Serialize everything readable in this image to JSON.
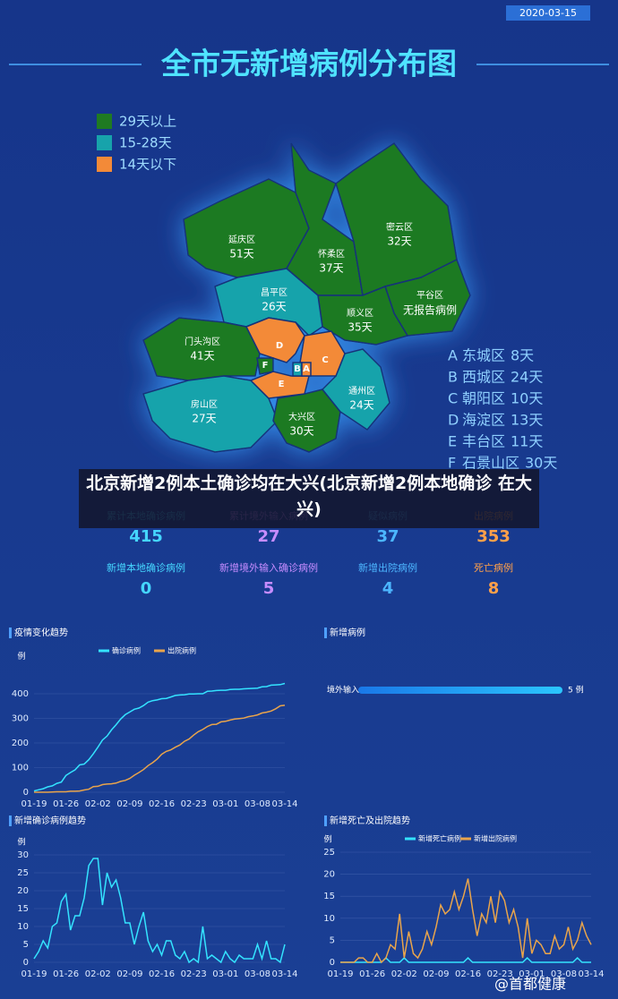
{
  "header": {
    "date": "2020-03-15",
    "title": "全市无新增病例分布图"
  },
  "map": {
    "legend": [
      {
        "label": "29天以上",
        "color": "#1f7a22"
      },
      {
        "label": "15-28天",
        "color": "#17a3ab"
      },
      {
        "label": "14天以下",
        "color": "#f38a38"
      }
    ],
    "regions": [
      {
        "name": "延庆区",
        "days": "51天"
      },
      {
        "name": "怀柔区",
        "days": "37天"
      },
      {
        "name": "密云区",
        "days": "32天"
      },
      {
        "name": "平谷区",
        "days": "无报告病例"
      },
      {
        "name": "顺义区",
        "days": "35天"
      },
      {
        "name": "昌平区",
        "days": "26天"
      },
      {
        "name": "门头沟区",
        "days": "41天"
      },
      {
        "name": "房山区",
        "days": "27天"
      },
      {
        "name": "大兴区",
        "days": "30天"
      },
      {
        "name": "通州区",
        "days": "24天"
      }
    ],
    "districts": [
      {
        "letter": "A",
        "name": "东城区",
        "days": "8天"
      },
      {
        "letter": "B",
        "name": "西城区",
        "days": "24天"
      },
      {
        "letter": "C",
        "name": "朝阳区",
        "days": "10天"
      },
      {
        "letter": "D",
        "name": "海淀区",
        "days": "13天"
      },
      {
        "letter": "E",
        "name": "丰台区",
        "days": "11天"
      },
      {
        "letter": "F",
        "name": "石景山区",
        "days": "30天"
      }
    ]
  },
  "caption": "北京新增2例本土确诊均在大兴(北京新增2例本地确诊 在大兴)",
  "stats": {
    "rows": [
      [
        {
          "label": "累计本地确诊病例",
          "value": 415,
          "color": "#45d6ff"
        },
        {
          "label": "累计境外输入病例",
          "value": 27,
          "color": "#c58cff"
        },
        {
          "label": "疑似病例",
          "value": 37,
          "color": "#4cb6ff"
        },
        {
          "label": "出院病例",
          "value": 353,
          "color": "#ffa04a"
        }
      ],
      [
        {
          "label": "新增本地确诊病例",
          "value": 0,
          "color": "#45d6ff"
        },
        {
          "label": "新增境外输入确诊病例",
          "value": 5,
          "color": "#c58cff"
        },
        {
          "label": "新增出院病例",
          "value": 4,
          "color": "#4cb6ff"
        },
        {
          "label": "死亡病例",
          "value": 8,
          "color": "#ffa04a"
        }
      ]
    ]
  },
  "chart_data": [
    {
      "type": "line",
      "title": "疫情变化趋势",
      "y_label": "例",
      "grid": true,
      "categories": [
        "01-19",
        null,
        null,
        null,
        null,
        null,
        null,
        "01-26",
        null,
        null,
        null,
        null,
        null,
        null,
        "02-02",
        null,
        null,
        null,
        null,
        null,
        null,
        "02-09",
        null,
        null,
        null,
        null,
        null,
        null,
        "02-16",
        null,
        null,
        null,
        null,
        null,
        null,
        "02-23",
        null,
        null,
        null,
        null,
        null,
        null,
        "03-01",
        null,
        null,
        null,
        null,
        null,
        null,
        "03-08",
        null,
        null,
        null,
        null,
        null,
        "03-14"
      ],
      "ylim": [
        0,
        500
      ],
      "yticks": [
        0,
        100,
        200,
        300,
        400
      ],
      "series": [
        {
          "name": "确诊病例",
          "color": "#34e3ff",
          "values": [
            5,
            10,
            14,
            22,
            26,
            36,
            41,
            68,
            80,
            91,
            111,
            114,
            132,
            156,
            183,
            212,
            228,
            253,
            274,
            297,
            315,
            326,
            337,
            342,
            352,
            366,
            372,
            375,
            380,
            381,
            387,
            393,
            395,
            396,
            399,
            399,
            400,
            400,
            410,
            411,
            413,
            414,
            414,
            417,
            418,
            418,
            420,
            421,
            422,
            423,
            428,
            429,
            435,
            436,
            437,
            442
          ]
        },
        {
          "name": "出院病例",
          "color": "#e9a44b",
          "values": [
            0,
            0,
            0,
            0,
            1,
            2,
            2,
            2,
            4,
            4,
            5,
            9,
            12,
            23,
            24,
            31,
            33,
            34,
            37,
            44,
            48,
            56,
            69,
            80,
            92,
            108,
            120,
            135,
            154,
            166,
            172,
            183,
            192,
            207,
            216,
            232,
            246,
            255,
            267,
            275,
            276,
            286,
            288,
            293,
            297,
            299,
            301,
            307,
            310,
            314,
            322,
            325,
            330,
            339,
            351,
            353
          ]
        }
      ]
    },
    {
      "type": "line",
      "title": "新增确诊病例趋势",
      "y_label": "例",
      "grid": true,
      "categories": [
        "01-19",
        null,
        null,
        null,
        null,
        null,
        null,
        "01-26",
        null,
        null,
        null,
        null,
        null,
        null,
        "02-02",
        null,
        null,
        null,
        null,
        null,
        null,
        "02-09",
        null,
        null,
        null,
        null,
        null,
        null,
        "02-16",
        null,
        null,
        null,
        null,
        null,
        null,
        "02-23",
        null,
        null,
        null,
        null,
        null,
        null,
        "03-01",
        null,
        null,
        null,
        null,
        null,
        null,
        "03-08",
        null,
        null,
        null,
        null,
        null,
        "03-14"
      ],
      "ylim": [
        0,
        30
      ],
      "yticks": [
        0,
        5,
        10,
        15,
        20,
        25,
        30
      ],
      "series": [
        {
          "color": "#34e3ff",
          "values": [
            1,
            3,
            6,
            4,
            10,
            11,
            17,
            19,
            9,
            13,
            13,
            18,
            27,
            29,
            29,
            16,
            25,
            21,
            23,
            18,
            11,
            11,
            5,
            10,
            14,
            6,
            3,
            5,
            2,
            6,
            6,
            2,
            1,
            3,
            0,
            1,
            0,
            10,
            1,
            2,
            1,
            0,
            3,
            1,
            0,
            2,
            1,
            1,
            1,
            5,
            1,
            6,
            1,
            1,
            0,
            5
          ]
        }
      ]
    },
    {
      "type": "bar",
      "title": "新增病例",
      "categories": [
        "境外输入"
      ],
      "values": [
        5
      ],
      "value_labels": [
        "5 例"
      ],
      "color": "#1c8cf0"
    },
    {
      "type": "line",
      "title": "新增死亡及出院趋势",
      "y_label": "例",
      "grid": true,
      "categories": [
        "01-19",
        null,
        null,
        null,
        null,
        null,
        null,
        "01-26",
        null,
        null,
        null,
        null,
        null,
        null,
        "02-02",
        null,
        null,
        null,
        null,
        null,
        null,
        "02-09",
        null,
        null,
        null,
        null,
        null,
        null,
        "02-16",
        null,
        null,
        null,
        null,
        null,
        null,
        "02-23",
        null,
        null,
        null,
        null,
        null,
        null,
        "03-01",
        null,
        null,
        null,
        null,
        null,
        null,
        "03-08",
        null,
        null,
        null,
        null,
        null,
        "03-14"
      ],
      "ylim": [
        0,
        25
      ],
      "yticks": [
        0,
        5,
        10,
        15,
        20,
        25
      ],
      "series": [
        {
          "name": "新增死亡病例",
          "color": "#34e3ff",
          "values": [
            0,
            0,
            0,
            0,
            0,
            0,
            0,
            0,
            0,
            0,
            1,
            0,
            0,
            0,
            1,
            0,
            0,
            0,
            0,
            0,
            0,
            0,
            0,
            0,
            0,
            0,
            0,
            0,
            1,
            0,
            0,
            0,
            0,
            0,
            0,
            0,
            0,
            0,
            0,
            0,
            0,
            1,
            0,
            0,
            0,
            0,
            0,
            0,
            0,
            0,
            0,
            0,
            1,
            0,
            0,
            0
          ]
        },
        {
          "name": "新增出院病例",
          "color": "#e9a44b",
          "values": [
            0,
            0,
            0,
            0,
            1,
            1,
            0,
            0,
            2,
            0,
            1,
            4,
            3,
            11,
            1,
            7,
            2,
            1,
            3,
            7,
            4,
            8,
            13,
            11,
            12,
            16,
            12,
            15,
            19,
            12,
            6,
            11,
            9,
            15,
            9,
            16,
            14,
            9,
            12,
            8,
            1,
            10,
            2,
            5,
            4,
            2,
            2,
            6,
            3,
            4,
            8,
            3,
            5,
            9,
            6,
            4
          ]
        }
      ]
    }
  ],
  "watermark": "@首都健康"
}
